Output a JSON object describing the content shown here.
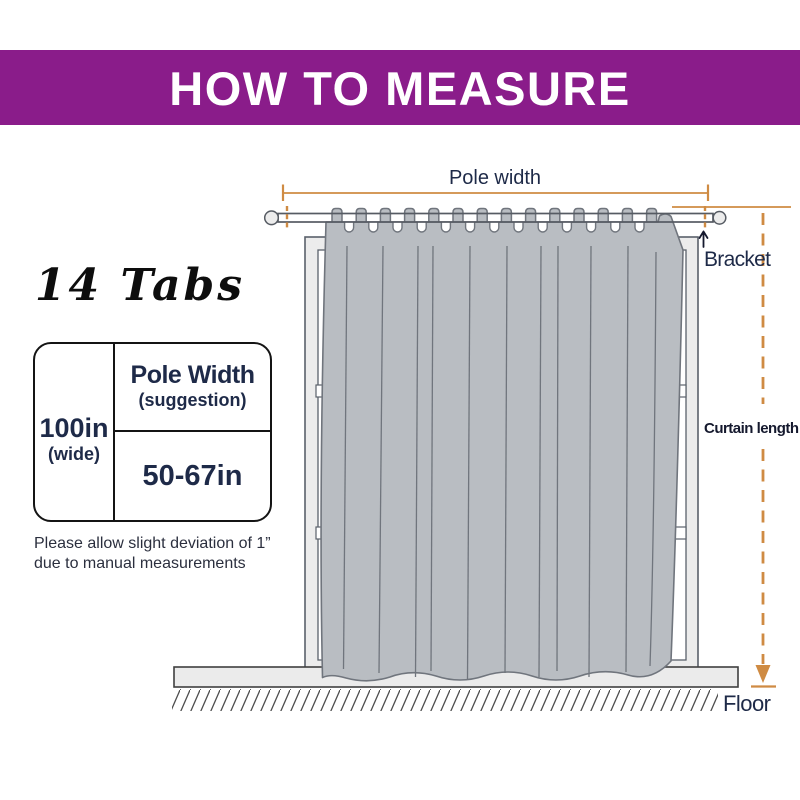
{
  "banner": {
    "title": "HOW TO MEASURE",
    "bg_color": "#8A1C8A",
    "text_color": "#FFFFFF"
  },
  "left_panel": {
    "tabs_heading": "14 Tabs",
    "table": {
      "width_value": "100in",
      "width_sub": "(wide)",
      "pole_header": "Pole Width",
      "pole_sub": "(suggestion)",
      "pole_range": "50-67in"
    },
    "note_line1": "Please allow slight deviation of 1”",
    "note_line2": "due to manual measurements"
  },
  "diagram": {
    "pole_width_label": "Pole width",
    "bracket_label": "Bracket",
    "curtain_length_label": "Curtain length",
    "floor_label": "Floor",
    "tabs_count": 14,
    "colors": {
      "accent_orange": "#CF8B43",
      "curtain_fill": "#B9BDC2",
      "curtain_stroke": "#70757D",
      "label_navy": "#1E2A48"
    }
  }
}
